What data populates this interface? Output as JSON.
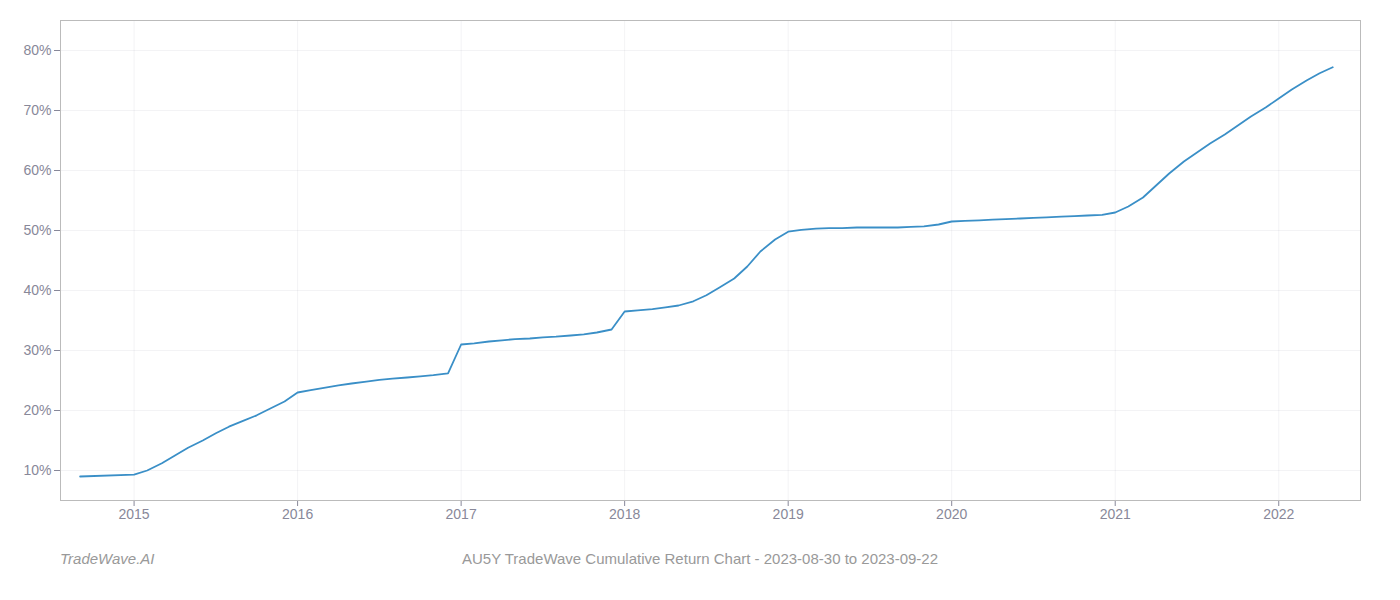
{
  "chart_data": {
    "type": "line",
    "title": "AU5Y TradeWave Cumulative Return Chart - 2023-08-30 to 2023-09-22",
    "caption": "TradeWave.AI",
    "color": "#3a8fc7",
    "x": [
      2014.67,
      2015.0,
      2015.08,
      2015.17,
      2015.25,
      2015.33,
      2015.42,
      2015.5,
      2015.58,
      2015.67,
      2015.75,
      2015.83,
      2015.92,
      2016.0,
      2016.08,
      2016.17,
      2016.25,
      2016.33,
      2016.42,
      2016.5,
      2016.58,
      2016.67,
      2016.75,
      2016.83,
      2016.92,
      2017.0,
      2017.08,
      2017.17,
      2017.25,
      2017.33,
      2017.42,
      2017.5,
      2017.58,
      2017.67,
      2017.75,
      2017.83,
      2017.92,
      2018.0,
      2018.08,
      2018.17,
      2018.25,
      2018.33,
      2018.42,
      2018.5,
      2018.58,
      2018.67,
      2018.75,
      2018.83,
      2018.92,
      2019.0,
      2019.08,
      2019.17,
      2019.25,
      2019.33,
      2019.42,
      2019.5,
      2019.58,
      2019.67,
      2019.75,
      2019.83,
      2019.92,
      2020.0,
      2020.08,
      2020.17,
      2020.25,
      2020.33,
      2020.42,
      2020.5,
      2020.58,
      2020.67,
      2020.75,
      2020.83,
      2020.92,
      2021.0,
      2021.08,
      2021.17,
      2021.25,
      2021.33,
      2021.42,
      2021.5,
      2021.58,
      2021.67,
      2021.75,
      2021.83,
      2021.92,
      2022.0,
      2022.08,
      2022.17,
      2022.25,
      2022.33
    ],
    "values": [
      9.0,
      9.3,
      10.0,
      11.2,
      12.5,
      13.8,
      15.0,
      16.2,
      17.3,
      18.3,
      19.2,
      20.3,
      21.5,
      23.0,
      23.4,
      23.8,
      24.2,
      24.5,
      24.8,
      25.1,
      25.3,
      25.5,
      25.7,
      25.9,
      26.2,
      31.0,
      31.2,
      31.5,
      31.7,
      31.9,
      32.0,
      32.2,
      32.3,
      32.5,
      32.7,
      33.0,
      33.5,
      36.5,
      36.7,
      36.9,
      37.2,
      37.5,
      38.2,
      39.2,
      40.5,
      42.0,
      44.0,
      46.5,
      48.5,
      49.8,
      50.1,
      50.3,
      50.4,
      50.4,
      50.5,
      50.5,
      50.5,
      50.5,
      50.6,
      50.7,
      51.0,
      51.5,
      51.6,
      51.7,
      51.8,
      51.9,
      52.0,
      52.1,
      52.2,
      52.3,
      52.4,
      52.5,
      52.6,
      53.0,
      54.0,
      55.5,
      57.5,
      59.5,
      61.5,
      63.0,
      64.5,
      66.0,
      67.5,
      69.0,
      70.5,
      72.0,
      73.5,
      75.0,
      76.2,
      77.2
    ],
    "xlim": [
      2014.55,
      2022.5
    ],
    "ylim": [
      5,
      85
    ],
    "xticks": [
      2015,
      2016,
      2017,
      2018,
      2019,
      2020,
      2021,
      2022
    ],
    "yticks": [
      {
        "value": 10,
        "label": "10%"
      },
      {
        "value": 20,
        "label": "20%"
      },
      {
        "value": 30,
        "label": "30%"
      },
      {
        "value": 40,
        "label": "40%"
      },
      {
        "value": 50,
        "label": "50%"
      },
      {
        "value": 60,
        "label": "60%"
      },
      {
        "value": 70,
        "label": "70%"
      },
      {
        "value": 80,
        "label": "80%"
      }
    ],
    "grid": true
  }
}
